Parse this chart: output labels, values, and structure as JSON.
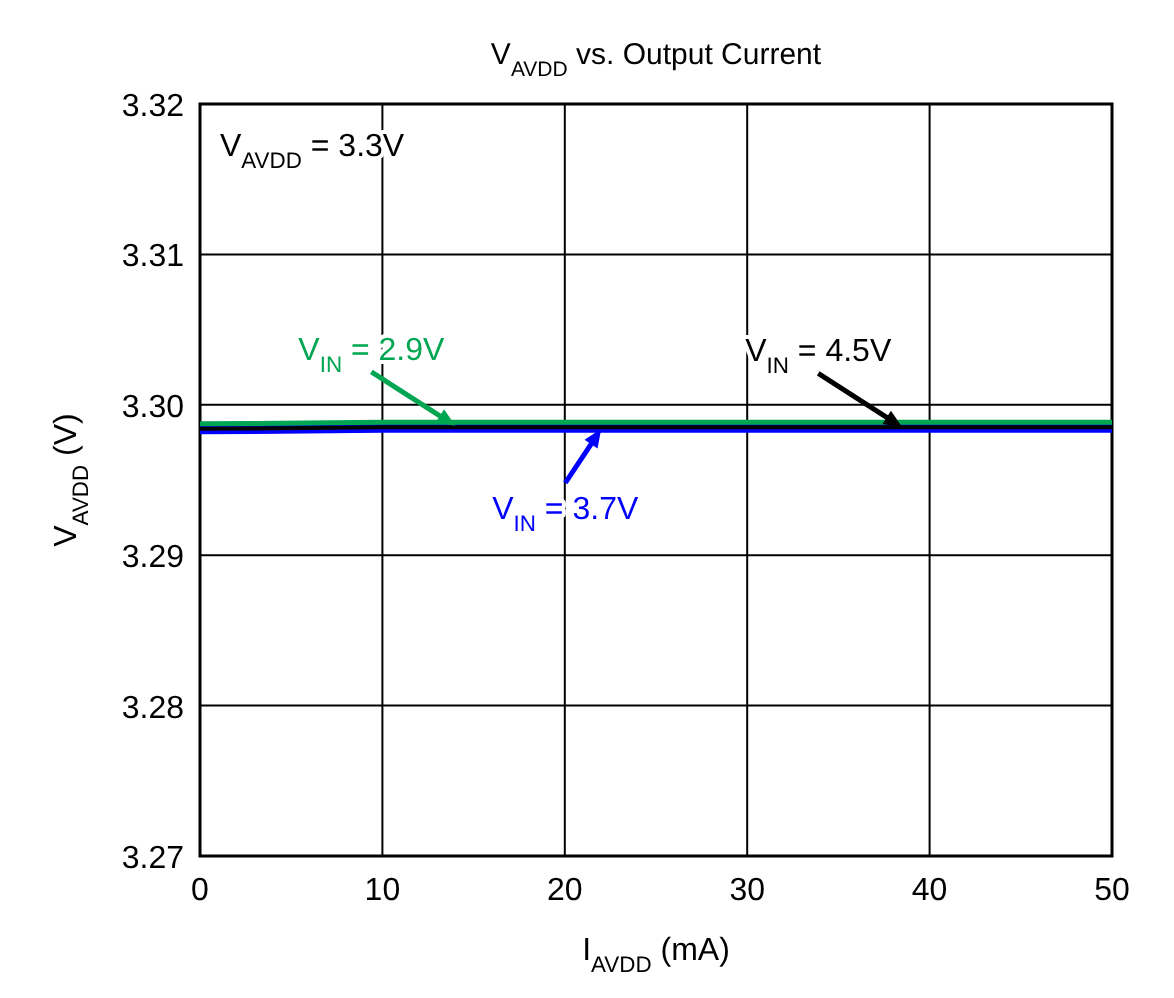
{
  "chart_data": {
    "type": "line",
    "title": "V$_{AVDD}$ vs. Output Current",
    "xlabel": "I$_{AVDD}$ (mA)",
    "ylabel": "V$_{AVDD}$ (V)",
    "x": [
      0,
      10,
      20,
      30,
      40,
      50
    ],
    "series": [
      {
        "color": "#00a651",
        "values": [
          3.2985,
          3.2986,
          3.2986,
          3.2986,
          3.2986,
          3.2986
        ]
      },
      {
        "color": "#0000ff",
        "values": [
          3.2983,
          3.2984,
          3.2984,
          3.2984,
          3.2984,
          3.2984
        ]
      },
      {
        "color": "#000000",
        "values": [
          3.2984,
          3.2985,
          3.2985,
          3.2985,
          3.2985,
          3.2985
        ]
      }
    ],
    "annotations": [
      "V$_{AVDD}$ = 3.3V",
      {
        "text": "V$_{IN}$ = 2.9V",
        "x": 14,
        "y": 3.2986
      },
      {
        "text": "V$_{IN}$ = 3.7V",
        "x": 22,
        "y": 3.2984
      },
      {
        "text": "V$_{IN}$ = 4.5V",
        "x": 38.5,
        "y": 3.2985
      }
    ],
    "xlim": [
      0,
      50
    ],
    "xticks": [
      0,
      10,
      20,
      30,
      40,
      50
    ],
    "ylim": [
      3.27,
      3.32
    ],
    "yticks": [
      3.27,
      3.28,
      3.29,
      {
        "value": 3.3,
        "label": "3.30"
      },
      3.31,
      3.32
    ],
    "grid": true
  }
}
